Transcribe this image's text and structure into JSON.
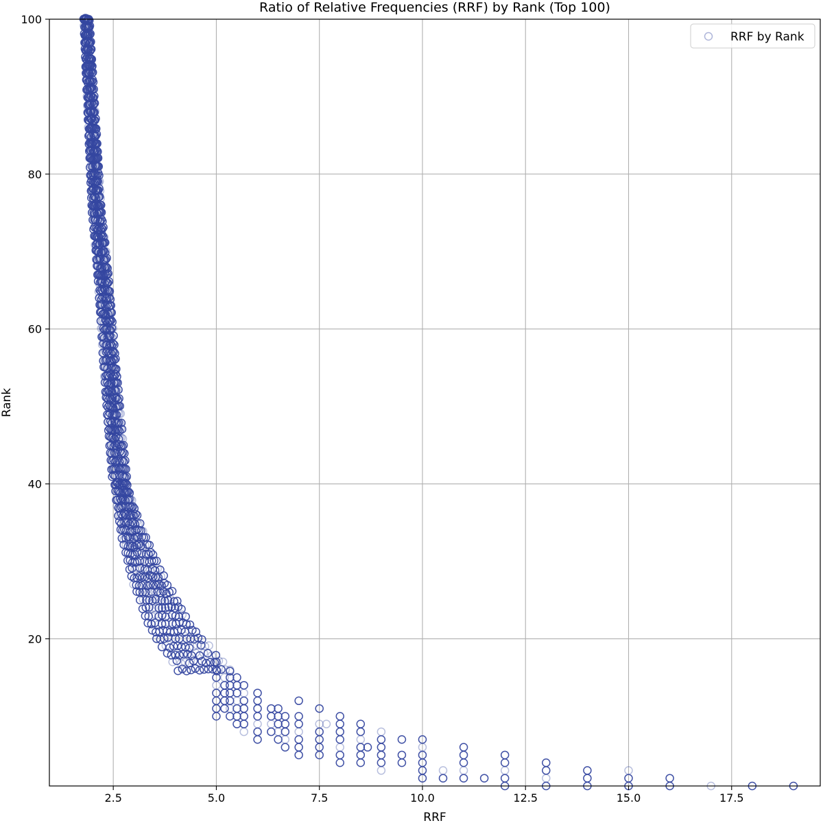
{
  "chart_data": {
    "type": "scatter",
    "title": "Ratio of Relative Frequencies (RRF) by Rank (Top 100)",
    "xlabel": "RRF",
    "ylabel": "Rank",
    "xlim": [
      0.95,
      19.65
    ],
    "ylim": [
      1,
      100
    ],
    "xticks": [
      2.5,
      5.0,
      7.5,
      10.0,
      12.5,
      15.0,
      17.5
    ],
    "xtick_labels": [
      "2.5",
      "5.0",
      "7.5",
      "10.0",
      "12.5",
      "15.0",
      "17.5"
    ],
    "yticks": [
      20,
      40,
      60,
      80,
      100
    ],
    "ytick_labels": [
      "20",
      "40",
      "60",
      "80",
      "100"
    ],
    "grid": true,
    "legend": {
      "placement": "top-right",
      "entries": [
        "RRF by Rank"
      ]
    },
    "marker": "open-circle",
    "colors": {
      "marker": "#3547a0",
      "grid": "#b0b0b0",
      "axis": "#000000"
    },
    "series": [
      {
        "name": "RRF by Rank",
        "band_points": [
          [
            1.85,
            100
          ],
          [
            1.9,
            95
          ],
          [
            1.95,
            90
          ],
          [
            2.0,
            85
          ],
          [
            2.05,
            80
          ],
          [
            2.1,
            75
          ],
          [
            2.2,
            70
          ],
          [
            2.28,
            65
          ],
          [
            2.35,
            60
          ],
          [
            2.42,
            55
          ],
          [
            2.5,
            50
          ],
          [
            2.58,
            45
          ],
          [
            2.65,
            41
          ],
          [
            2.8,
            37
          ],
          [
            3.0,
            33
          ],
          [
            3.2,
            30
          ],
          [
            3.4,
            27
          ],
          [
            3.6,
            25
          ],
          [
            3.85,
            22
          ],
          [
            4.1,
            20
          ],
          [
            4.4,
            18
          ],
          [
            4.7,
            16
          ]
        ],
        "discrete_points": [
          [
            5.0,
            17
          ],
          [
            5.0,
            16
          ],
          [
            5.0,
            15
          ],
          [
            5.0,
            14
          ],
          [
            5.0,
            13
          ],
          [
            5.0,
            12
          ],
          [
            5.0,
            11
          ],
          [
            5.0,
            10
          ],
          [
            5.2,
            15
          ],
          [
            5.2,
            14
          ],
          [
            5.2,
            13
          ],
          [
            5.2,
            12
          ],
          [
            5.2,
            11
          ],
          [
            5.33,
            16
          ],
          [
            5.33,
            15
          ],
          [
            5.33,
            14
          ],
          [
            5.33,
            13
          ],
          [
            5.33,
            12
          ],
          [
            5.33,
            11
          ],
          [
            5.33,
            10
          ],
          [
            5.5,
            15
          ],
          [
            5.5,
            14
          ],
          [
            5.5,
            13
          ],
          [
            5.5,
            12
          ],
          [
            5.5,
            11
          ],
          [
            5.5,
            10
          ],
          [
            5.5,
            9
          ],
          [
            5.67,
            14
          ],
          [
            5.67,
            13
          ],
          [
            5.67,
            12
          ],
          [
            5.67,
            11
          ],
          [
            5.67,
            10
          ],
          [
            5.67,
            9
          ],
          [
            5.67,
            8
          ],
          [
            6.0,
            13
          ],
          [
            6.0,
            12
          ],
          [
            6.0,
            11
          ],
          [
            6.0,
            10
          ],
          [
            6.0,
            9
          ],
          [
            6.0,
            8
          ],
          [
            6.0,
            7
          ],
          [
            6.33,
            11
          ],
          [
            6.33,
            10
          ],
          [
            6.33,
            9
          ],
          [
            6.33,
            8
          ],
          [
            6.5,
            11
          ],
          [
            6.5,
            10
          ],
          [
            6.5,
            9
          ],
          [
            6.5,
            8
          ],
          [
            6.5,
            7
          ],
          [
            6.67,
            10
          ],
          [
            6.67,
            9
          ],
          [
            6.67,
            8
          ],
          [
            6.67,
            7
          ],
          [
            6.67,
            6
          ],
          [
            7.0,
            12
          ],
          [
            7.0,
            10
          ],
          [
            7.0,
            9
          ],
          [
            7.0,
            8
          ],
          [
            7.0,
            7
          ],
          [
            7.0,
            6
          ],
          [
            7.0,
            5
          ],
          [
            7.5,
            11
          ],
          [
            7.5,
            9
          ],
          [
            7.5,
            8
          ],
          [
            7.5,
            7
          ],
          [
            7.5,
            6
          ],
          [
            7.5,
            5
          ],
          [
            7.67,
            9
          ],
          [
            8.0,
            10
          ],
          [
            8.0,
            9
          ],
          [
            8.0,
            8
          ],
          [
            8.0,
            7
          ],
          [
            8.0,
            6
          ],
          [
            8.0,
            5
          ],
          [
            8.0,
            4
          ],
          [
            8.5,
            9
          ],
          [
            8.5,
            8
          ],
          [
            8.5,
            7
          ],
          [
            8.5,
            6
          ],
          [
            8.5,
            5
          ],
          [
            8.5,
            4
          ],
          [
            8.67,
            6
          ],
          [
            9.0,
            8
          ],
          [
            9.0,
            7
          ],
          [
            9.0,
            6
          ],
          [
            9.0,
            5
          ],
          [
            9.0,
            4
          ],
          [
            9.0,
            3
          ],
          [
            9.5,
            7
          ],
          [
            9.5,
            5
          ],
          [
            9.5,
            4
          ],
          [
            10.0,
            7
          ],
          [
            10.0,
            6
          ],
          [
            10.0,
            5
          ],
          [
            10.0,
            4
          ],
          [
            10.0,
            3
          ],
          [
            10.0,
            2
          ],
          [
            10.5,
            3
          ],
          [
            10.5,
            2
          ],
          [
            11.0,
            6
          ],
          [
            11.0,
            5
          ],
          [
            11.0,
            4
          ],
          [
            11.0,
            3
          ],
          [
            11.0,
            2
          ],
          [
            11.5,
            2
          ],
          [
            12.0,
            5
          ],
          [
            12.0,
            4
          ],
          [
            12.0,
            3
          ],
          [
            12.0,
            2
          ],
          [
            12.0,
            1
          ],
          [
            13.0,
            4
          ],
          [
            13.0,
            3
          ],
          [
            13.0,
            2
          ],
          [
            13.0,
            1
          ],
          [
            14.0,
            3
          ],
          [
            14.0,
            2
          ],
          [
            14.0,
            1
          ],
          [
            15.0,
            3
          ],
          [
            15.0,
            2
          ],
          [
            15.0,
            1
          ],
          [
            16.0,
            2
          ],
          [
            16.0,
            1
          ],
          [
            17.0,
            1
          ],
          [
            18.0,
            1
          ],
          [
            19.0,
            1
          ]
        ]
      }
    ]
  }
}
